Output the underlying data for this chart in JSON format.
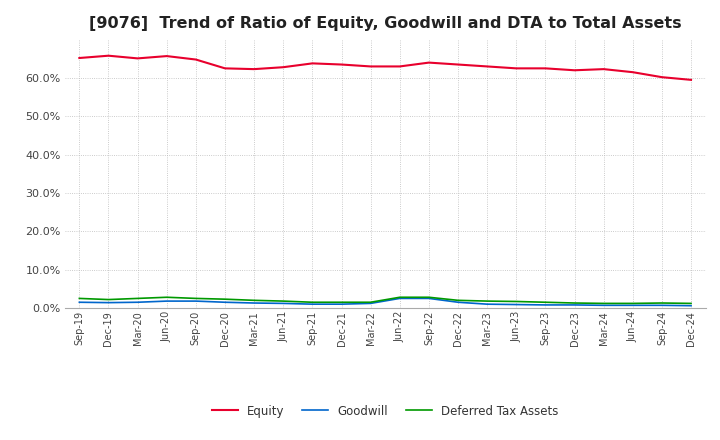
{
  "title": "[9076]  Trend of Ratio of Equity, Goodwill and DTA to Total Assets",
  "title_fontsize": 11.5,
  "x_labels": [
    "Sep-19",
    "Dec-19",
    "Mar-20",
    "Jun-20",
    "Sep-20",
    "Dec-20",
    "Mar-21",
    "Jun-21",
    "Sep-21",
    "Dec-21",
    "Mar-22",
    "Jun-22",
    "Sep-22",
    "Dec-22",
    "Mar-23",
    "Jun-23",
    "Sep-23",
    "Dec-23",
    "Mar-24",
    "Jun-24",
    "Sep-24",
    "Dec-24"
  ],
  "equity": [
    65.2,
    65.8,
    65.1,
    65.7,
    64.8,
    62.5,
    62.3,
    62.8,
    63.8,
    63.5,
    63.0,
    63.0,
    64.0,
    63.5,
    63.0,
    62.5,
    62.5,
    62.0,
    62.3,
    61.5,
    60.2,
    59.5
  ],
  "goodwill": [
    1.5,
    1.4,
    1.5,
    1.8,
    1.8,
    1.5,
    1.3,
    1.2,
    1.0,
    1.0,
    1.2,
    2.5,
    2.5,
    1.5,
    1.0,
    0.9,
    0.8,
    0.8,
    0.7,
    0.7,
    0.7,
    0.6
  ],
  "dta": [
    2.5,
    2.2,
    2.5,
    2.8,
    2.5,
    2.3,
    2.0,
    1.8,
    1.5,
    1.5,
    1.5,
    2.8,
    2.8,
    2.0,
    1.8,
    1.7,
    1.5,
    1.3,
    1.2,
    1.2,
    1.3,
    1.2
  ],
  "equity_color": "#e8002d",
  "goodwill_color": "#0066cc",
  "dta_color": "#009900",
  "ylim": [
    0,
    70
  ],
  "yticks": [
    0,
    10,
    20,
    30,
    40,
    50,
    60
  ],
  "grid_color": "#bbbbbb",
  "bg_color": "#ffffff",
  "legend_labels": [
    "Equity",
    "Goodwill",
    "Deferred Tax Assets"
  ]
}
